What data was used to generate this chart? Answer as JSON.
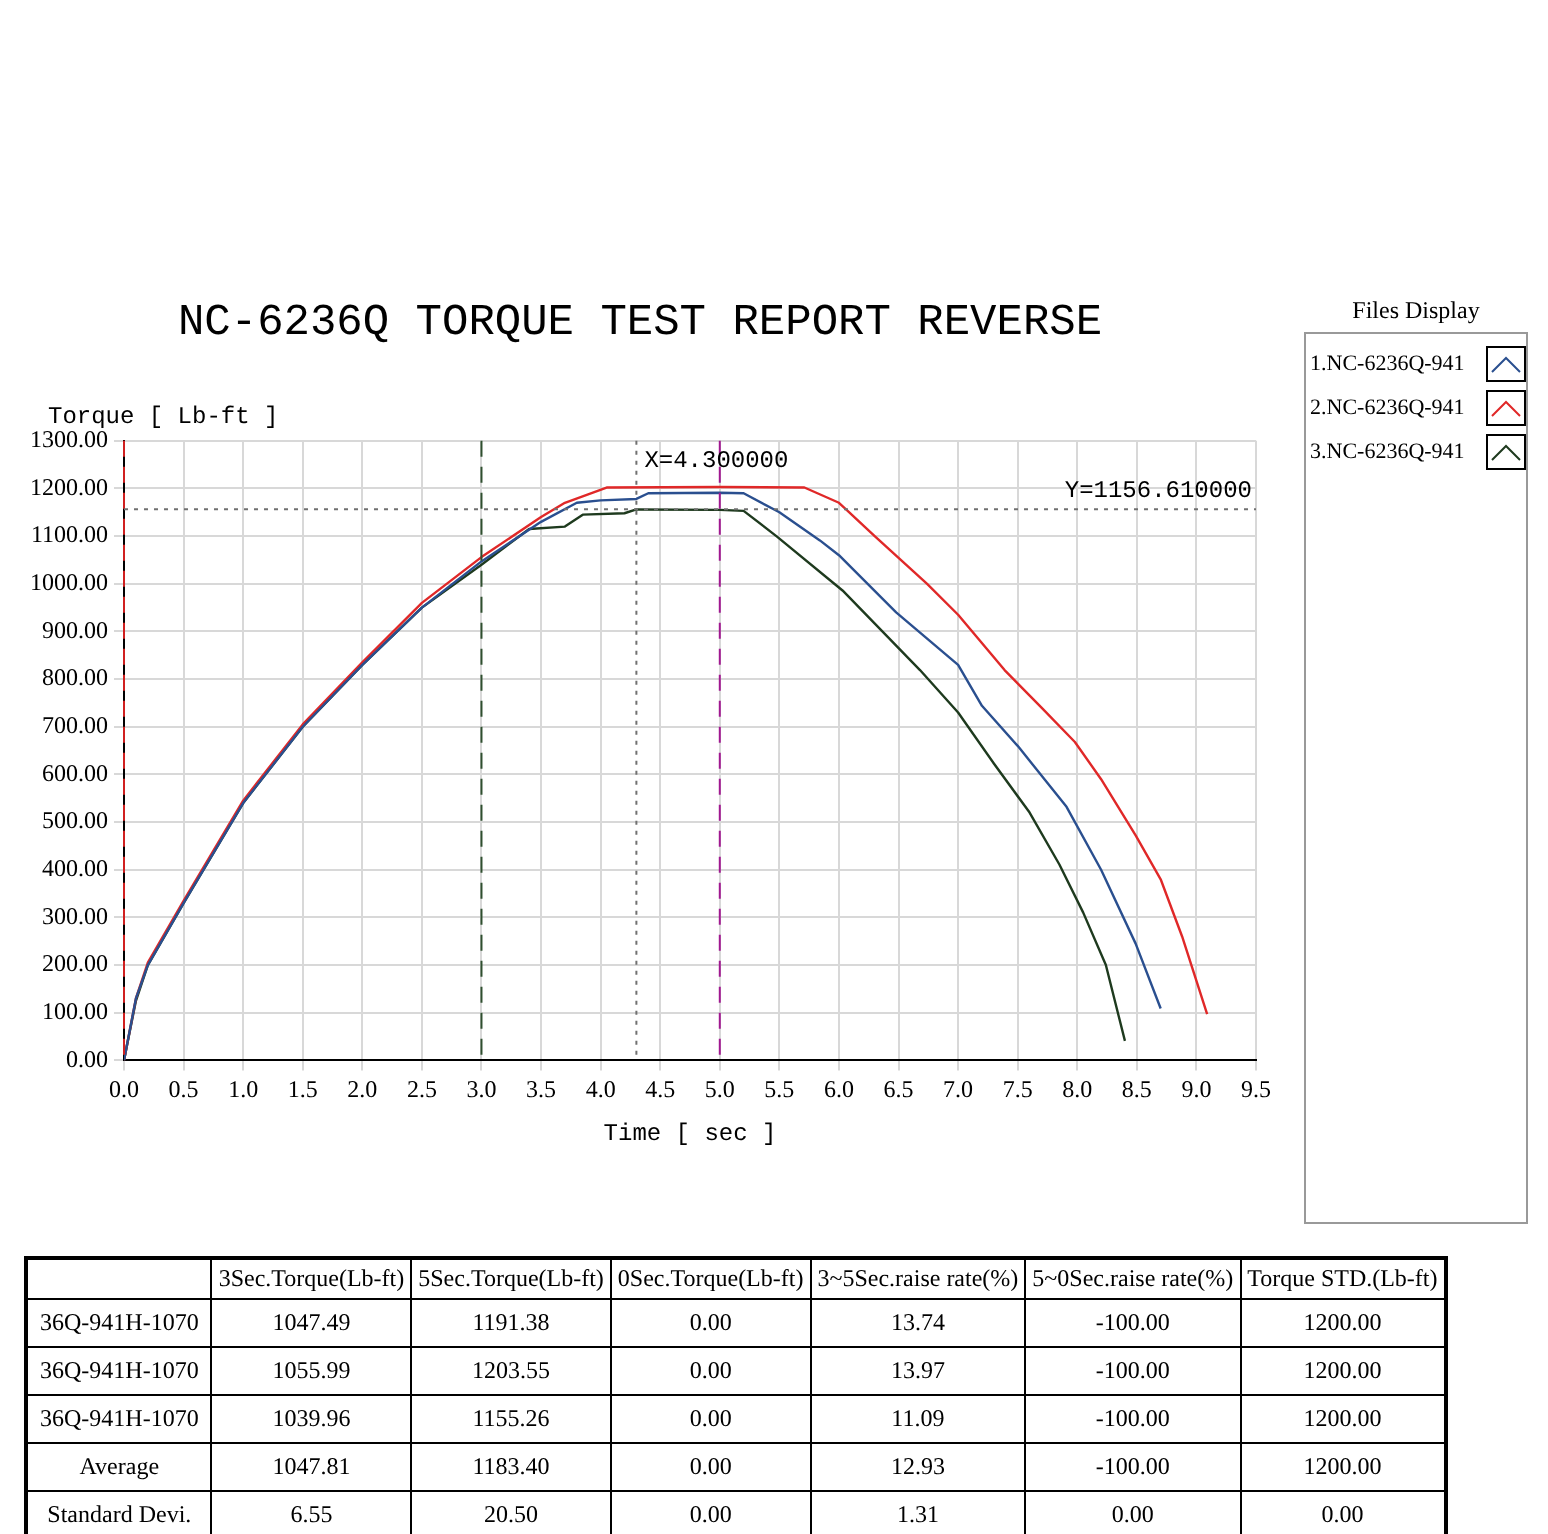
{
  "chart_data": {
    "type": "line",
    "title": "NC-6236Q TORQUE TEST REPORT REVERSE",
    "xlabel": "Time [ sec ]",
    "ylabel": "Torque [ Lb-ft ]",
    "legend_title": "Files Display",
    "legend": "right",
    "grid": true,
    "marker": "none",
    "line_style": "solid",
    "xlim": [
      0,
      9.5
    ],
    "ylim": [
      0,
      1300
    ],
    "xticks": [
      {
        "value": 0,
        "label": "0.0"
      },
      {
        "value": 0.5,
        "label": "0.5"
      },
      {
        "value": 1,
        "label": "1.0"
      },
      {
        "value": 1.5,
        "label": "1.5"
      },
      {
        "value": 2,
        "label": "2.0"
      },
      {
        "value": 2.5,
        "label": "2.5"
      },
      {
        "value": 3,
        "label": "3.0"
      },
      {
        "value": 3.5,
        "label": "3.5"
      },
      {
        "value": 4,
        "label": "4.0"
      },
      {
        "value": 4.5,
        "label": "4.5"
      },
      {
        "value": 5,
        "label": "5.0"
      },
      {
        "value": 5.5,
        "label": "5.5"
      },
      {
        "value": 6,
        "label": "6.0"
      },
      {
        "value": 6.5,
        "label": "6.5"
      },
      {
        "value": 7,
        "label": "7.0"
      },
      {
        "value": 7.5,
        "label": "7.5"
      },
      {
        "value": 8,
        "label": "8.0"
      },
      {
        "value": 8.5,
        "label": "8.5"
      },
      {
        "value": 9,
        "label": "9.0"
      },
      {
        "value": 9.5,
        "label": "9.5"
      }
    ],
    "yticks": [
      {
        "value": 0,
        "label": "0.00"
      },
      {
        "value": 100,
        "label": "100.00"
      },
      {
        "value": 200,
        "label": "200.00"
      },
      {
        "value": 300,
        "label": "300.00"
      },
      {
        "value": 400,
        "label": "400.00"
      },
      {
        "value": 500,
        "label": "500.00"
      },
      {
        "value": 600,
        "label": "600.00"
      },
      {
        "value": 700,
        "label": "700.00"
      },
      {
        "value": 800,
        "label": "800.00"
      },
      {
        "value": 900,
        "label": "900.00"
      },
      {
        "value": 1000,
        "label": "1000.00"
      },
      {
        "value": 1100,
        "label": "1100.00"
      },
      {
        "value": 1200,
        "label": "1200.00"
      },
      {
        "value": 1300,
        "label": "1300.00"
      }
    ],
    "series": [
      {
        "name": "1.NC-6236Q-941",
        "color": "#2a4f8f",
        "x": [
          0,
          0.1,
          0.2,
          0.5,
          1.0,
          1.5,
          2.0,
          2.5,
          3.0,
          3.5,
          3.8,
          4.0,
          4.3,
          4.4,
          5.0,
          5.2,
          5.5,
          5.84,
          6.0,
          6.48,
          7.0,
          7.2,
          7.5,
          7.91,
          8.2,
          8.49,
          8.7
        ],
        "values": [
          0,
          130,
          200,
          330,
          540,
          700,
          830,
          950,
          1047,
          1130,
          1170,
          1175,
          1178,
          1190,
          1191,
          1190,
          1150,
          1091,
          1060,
          940,
          830,
          744,
          660,
          532,
          400,
          245,
          109
        ]
      },
      {
        "name": "2.NC-6236Q-941",
        "color": "#e02828",
        "x": [
          0,
          0.1,
          0.2,
          0.5,
          1.0,
          1.5,
          2.0,
          2.5,
          3.0,
          3.5,
          3.7,
          4.05,
          5.0,
          5.71,
          6.0,
          6.3,
          6.74,
          7.0,
          7.39,
          7.7,
          7.98,
          8.2,
          8.49,
          8.7,
          8.88,
          9.09
        ],
        "values": [
          0,
          130,
          205,
          335,
          545,
          705,
          835,
          960,
          1056,
          1140,
          1170,
          1202,
          1203,
          1202,
          1170,
          1100,
          1000,
          935,
          819,
          740,
          668,
          590,
          472,
          380,
          260,
          97
        ]
      },
      {
        "name": "3.NC-6236Q-941",
        "color": "#1e3a1e",
        "x": [
          0,
          0.1,
          0.2,
          0.5,
          1.0,
          1.5,
          2.0,
          2.5,
          3.0,
          3.4,
          3.7,
          3.85,
          4.2,
          4.3,
          5.0,
          5.2,
          5.48,
          6.03,
          6.68,
          7.0,
          7.3,
          7.6,
          7.85,
          8.05,
          8.24,
          8.4
        ],
        "values": [
          0,
          125,
          200,
          330,
          540,
          700,
          830,
          950,
          1040,
          1115,
          1120,
          1145,
          1148,
          1156,
          1155,
          1153,
          1099,
          986,
          819,
          730,
          623,
          520,
          411,
          310,
          200,
          41
        ]
      }
    ],
    "ref_lines": [
      {
        "axis": "x",
        "value": 0,
        "color": "#d02020",
        "line_style": "dashed"
      },
      {
        "axis": "x",
        "value": 3,
        "color": "#2f4f2f",
        "line_style": "dashed"
      },
      {
        "axis": "x",
        "value": 5,
        "color": "#a01890",
        "line_style": "dashed"
      },
      {
        "axis": "y",
        "value": 1156.61,
        "label": "Y=1156.610000",
        "color": "#707070",
        "line_style": "dotted"
      },
      {
        "axis": "x",
        "value": 4.3,
        "label": "X=4.300000",
        "color": "#707070",
        "line_style": "dotted"
      }
    ],
    "annotations": [
      "3Sec.Torque(Lb-ft)",
      "5Sec.Torque(Lb-ft)",
      "0Sec.Torque(Lb-ft)",
      "3~5Sec.raise rate(%)",
      "5~0Sec.raise rate(%)",
      "Torque STD.(Lb-ft)",
      "36Q-941H-1070",
      "1047.49",
      "1191.38",
      "0.00",
      "13.74",
      "-100.00",
      "1200.00",
      "36Q-941H-1070",
      "1055.99",
      "1203.55",
      "0.00",
      "13.97",
      "-100.00",
      "1200.00",
      "36Q-941H-1070",
      "1039.96",
      "1155.26",
      "0.00",
      "11.09",
      "-100.00",
      "1200.00",
      "Average",
      "1047.81",
      "1183.40",
      "0.00",
      "12.93",
      "-100.00",
      "1200.00",
      "Standard Devi.",
      "6.55",
      "20.50",
      "0.00",
      "1.31",
      "0.00",
      "0.00"
    ]
  }
}
